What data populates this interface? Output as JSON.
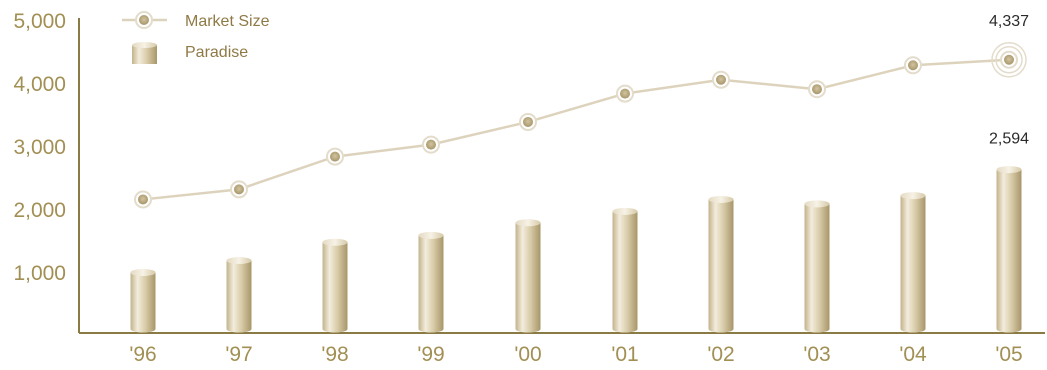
{
  "chart_data": {
    "type": "bar+line",
    "categories": [
      "'96",
      "'97",
      "'98",
      "'99",
      "'00",
      "'01",
      "'02",
      "'03",
      "'04",
      "'05"
    ],
    "series": [
      {
        "name": "Market Size",
        "type": "line",
        "values": [
          2120,
          2280,
          2800,
          2990,
          3350,
          3800,
          4020,
          3870,
          4250,
          4337
        ]
      },
      {
        "name": "Paradise",
        "type": "bar",
        "values": [
          960,
          1150,
          1440,
          1550,
          1750,
          1930,
          2120,
          2050,
          2180,
          2594
        ]
      }
    ],
    "annotations": [
      {
        "text": "4,337",
        "series": "Market Size",
        "index": 9
      },
      {
        "text": "2,594",
        "series": "Paradise",
        "index": 9
      }
    ],
    "yticks": [
      "1,000",
      "2,000",
      "3,000",
      "4,000",
      "5,000"
    ],
    "ytick_values": [
      1000,
      2000,
      3000,
      4000,
      5000
    ],
    "ylim": [
      0,
      5000
    ],
    "grid": false,
    "legend_position": "top-left",
    "colors": {
      "axis": "#8a7a44",
      "tick_label": "#a28f54",
      "line": "#ddd3bd",
      "marker_fill": "#bfae84",
      "marker_ring": "#e4dccb",
      "bar_light": "#f3ecdc",
      "bar_mid": "#d7c9a5",
      "bar_dark": "#a8966a",
      "annotation": "#2b2b2b"
    }
  }
}
